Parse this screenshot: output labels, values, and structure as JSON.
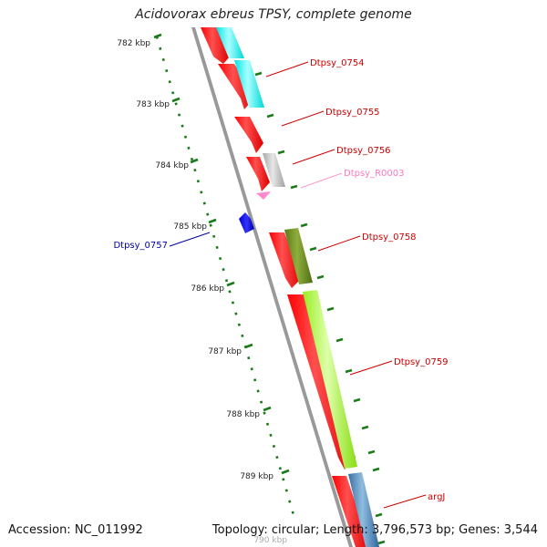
{
  "title": "Acidovorax ebreus TPSY, complete genome",
  "footer": {
    "accession": "Accession: NC_011992",
    "summary": "Topology: circular; Length: 3,796,573 bp; Genes: 3,544"
  },
  "scale_labels": [
    "782 kbp",
    "783 kbp",
    "784 kbp",
    "785 kbp",
    "786 kbp",
    "787 kbp",
    "788 kbp",
    "789 kbp",
    "790 kbp"
  ],
  "gene_labels": [
    "Dtpsy_0754",
    "Dtpsy_0755",
    "Dtpsy_0756",
    "Dtpsy_R0003",
    "Dtpsy_0757",
    "Dtpsy_0758",
    "Dtpsy_0759",
    "argJ"
  ],
  "colors": {
    "cds": "#ff0000",
    "rna": "#ff88cc",
    "reverse_gene": "#0000ee",
    "label": "#cc0000",
    "rna_label": "#ff77bb",
    "reverse_label": "#0000aa",
    "scale": "#1a7a1a",
    "backbone": "#999999",
    "cog_cyan": "#00ffff",
    "cog_gray": "#bbbbbb",
    "cog_olive": "#6b8c23",
    "cog_lime": "#aaff33",
    "cog_steel": "#4682b4"
  }
}
